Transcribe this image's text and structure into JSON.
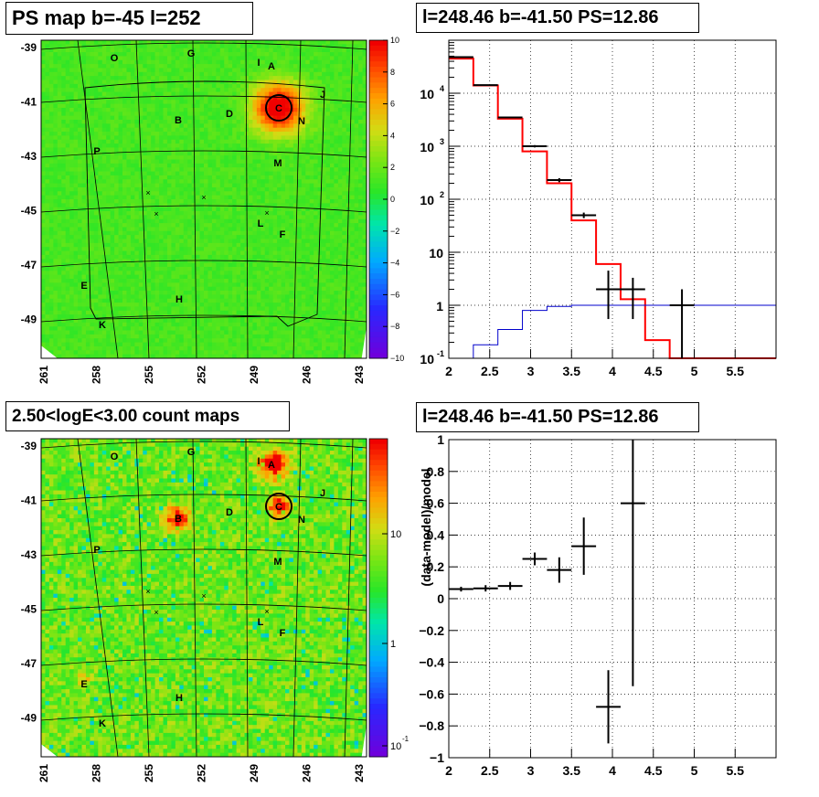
{
  "panels": {
    "ps_map": {
      "title": "PS map b=-45 l=252",
      "y_ticks": [
        "-39",
        "-41",
        "-43",
        "-45",
        "-47",
        "-49"
      ],
      "x_ticks": [
        "261",
        "258",
        "255",
        "252",
        "249",
        "246",
        "243"
      ],
      "colorbar_ticks": [
        "10",
        "8",
        "6",
        "4",
        "2",
        "0",
        "−2",
        "−4",
        "−6",
        "−8",
        "−10"
      ]
    },
    "spectrum": {
      "title": "l=248.46 b=-41.50 PS=12.86"
    },
    "count_map": {
      "title": "2.50<logE<3.00 count maps",
      "y_ticks": [
        "-39",
        "-41",
        "-43",
        "-45",
        "-47",
        "-49"
      ],
      "x_ticks": [
        "261",
        "258",
        "255",
        "252",
        "249",
        "246",
        "243"
      ],
      "colorbar_ticks": [
        "10",
        "1",
        "10"
      ],
      "colorbar_exp": "-1"
    },
    "residual": {
      "title": "l=248.46 b=-41.50 PS=12.86"
    }
  },
  "source_labels": [
    {
      "label": "O"
    },
    {
      "label": "G"
    },
    {
      "label": "I"
    },
    {
      "label": "A"
    },
    {
      "label": "J"
    },
    {
      "label": "B"
    },
    {
      "label": "D"
    },
    {
      "label": "C"
    },
    {
      "label": "N"
    },
    {
      "label": "P"
    },
    {
      "label": "M"
    },
    {
      "label": "L"
    },
    {
      "label": "F"
    },
    {
      "label": "E"
    },
    {
      "label": "H"
    },
    {
      "label": "K"
    }
  ],
  "colors": {
    "data": "#000000",
    "model": "#ff0000",
    "background": "#0000cc",
    "grid": "#000000"
  },
  "chart_data": [
    {
      "type": "heatmap",
      "name_shown": "PS map b=-45 l=252",
      "xlabel": "",
      "ylabel": "",
      "x_ticks": [
        261,
        258,
        255,
        252,
        249,
        246,
        243
      ],
      "y_ticks": [
        -39,
        -41,
        -43,
        -45,
        -47,
        -49
      ],
      "z_range": [
        -10,
        10
      ],
      "hot_spots": [
        {
          "label": "C",
          "l": 247.5,
          "b": -41.3,
          "value": 10
        }
      ]
    },
    {
      "type": "line",
      "title": "l=248.46 b=-41.50 PS=12.86",
      "xlabel": "",
      "ylabel": "",
      "log_y": true,
      "xlim": [
        2,
        6
      ],
      "ylim": [
        0.1,
        100000
      ],
      "x_ticks": [
        "2",
        "2.5",
        "3",
        "3.5",
        "4",
        "4.5",
        "5",
        "5.5"
      ],
      "y_ticks": [
        "10^-1",
        "1",
        "10",
        "10^2",
        "10^3",
        "10^4"
      ],
      "series": [
        {
          "style": "histogram",
          "edges": [
            2,
            2.3,
            2.6,
            2.9,
            3.2,
            3.5,
            3.8,
            4.1,
            4.4,
            4.7,
            6.0
          ],
          "values": [
            45000,
            14000,
            3300,
            800,
            200,
            40,
            6,
            1.3,
            0.22,
            0.1
          ]
        },
        {
          "style": "histogram",
          "edges": [
            2.3,
            2.6,
            2.9,
            3.2,
            3.5,
            6.0
          ],
          "values": [
            0.18,
            0.35,
            0.8,
            0.95,
            1.0
          ]
        },
        {
          "style": "points",
          "x": [
            2.15,
            2.45,
            2.75,
            3.05,
            3.35,
            3.65,
            3.95,
            4.25,
            4.85
          ],
          "y": [
            48000,
            14200,
            3500,
            1000,
            230,
            50,
            2.0,
            2.0,
            1.0
          ],
          "yerr": [
            [
              47000,
              49000
            ],
            [
              14000,
              14400
            ],
            [
              3400,
              3600
            ],
            [
              950,
              1050
            ],
            [
              210,
              250
            ],
            [
              44,
              56
            ],
            [
              0.55,
              4.5
            ],
            [
              0.55,
              3.3
            ],
            [
              0.1,
              2.0
            ]
          ]
        }
      ]
    },
    {
      "type": "heatmap",
      "name_shown": "2.50<logE<3.00 count maps",
      "xlabel": "",
      "ylabel": "",
      "x_ticks": [
        261,
        258,
        255,
        252,
        249,
        246,
        243
      ],
      "y_ticks": [
        -39,
        -41,
        -43,
        -45,
        -47,
        -49
      ],
      "log_z": true,
      "hot_spots": [
        {
          "label": "A",
          "l": 247.8,
          "b": -39.6
        },
        {
          "label": "B",
          "l": 253.5,
          "b": -41.8
        },
        {
          "label": "C",
          "l": 247.5,
          "b": -41.3
        }
      ]
    },
    {
      "type": "scatter",
      "title": "l=248.46 b=-41.50 PS=12.86",
      "xlabel": "",
      "ylabel": "(data-model)/model",
      "xlim": [
        2,
        6
      ],
      "ylim": [
        -1,
        1
      ],
      "x_ticks": [
        "2",
        "2.5",
        "3",
        "3.5",
        "4",
        "4.5",
        "5",
        "5.5"
      ],
      "y_ticks": [
        "1",
        "0.8",
        "0.6",
        "0.4",
        "0.2",
        "0",
        "−0.2",
        "−0.4",
        "−0.6",
        "−0.8",
        "−1"
      ],
      "x": [
        2.15,
        2.45,
        2.75,
        3.05,
        3.35,
        3.65,
        3.95,
        4.25
      ],
      "y": [
        0.06,
        0.065,
        0.08,
        0.25,
        0.18,
        0.33,
        -0.68,
        0.6
      ],
      "xerr": 0.15,
      "yerr": [
        0.015,
        0.02,
        0.025,
        0.04,
        0.08,
        0.18,
        0.23,
        1.15
      ]
    }
  ]
}
